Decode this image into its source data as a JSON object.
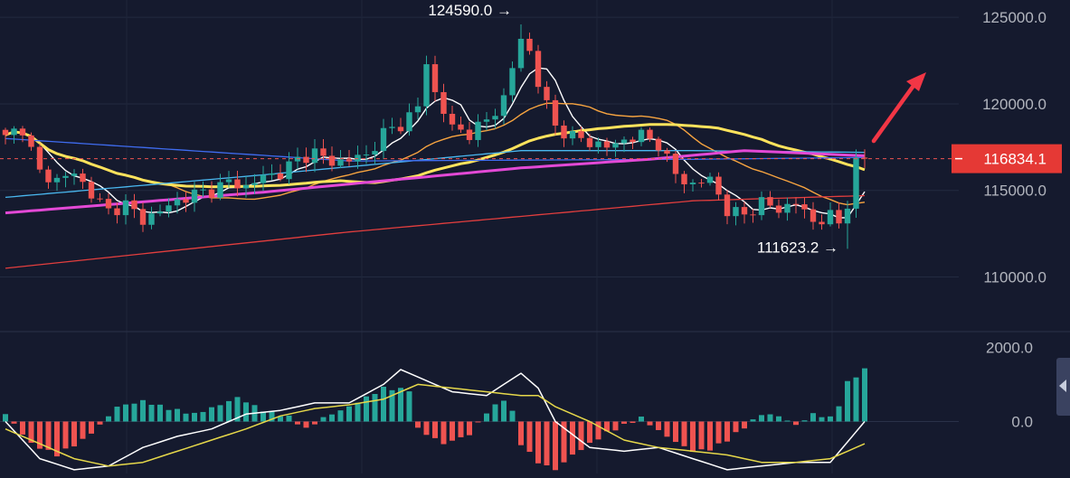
{
  "chart_data": [
    {
      "type": "candlestick",
      "title": "",
      "xlabel": "",
      "ylabel": "",
      "ylim": [
        107000,
        126000
      ],
      "y_ticks": [
        "110000.0",
        "115000.0",
        "120000.0",
        "125000.0"
      ],
      "grid": true,
      "current_price": "116834.1",
      "annotations": [
        {
          "label": "124590.0",
          "marker": "→",
          "price": 124590.0,
          "candle_index": 60
        },
        {
          "label": "111623.2",
          "marker": "→",
          "price": 111623.2,
          "candle_index": 98
        }
      ],
      "trend_arrow": {
        "direction": "up",
        "color": "#f23645"
      },
      "ohlc_keyframes": [
        [
          0,
          118200
        ],
        [
          2,
          118600
        ],
        [
          4,
          116000
        ],
        [
          6,
          115600
        ],
        [
          8,
          116000
        ],
        [
          10,
          114800
        ],
        [
          12,
          113800
        ],
        [
          14,
          114200
        ],
        [
          16,
          113300
        ],
        [
          18,
          113800
        ],
        [
          20,
          114400
        ],
        [
          22,
          114800
        ],
        [
          24,
          115000
        ],
        [
          26,
          115500
        ],
        [
          28,
          115200
        ],
        [
          30,
          115800
        ],
        [
          32,
          116000
        ],
        [
          34,
          116800
        ],
        [
          36,
          117200
        ],
        [
          38,
          116600
        ],
        [
          40,
          116800
        ],
        [
          42,
          117000
        ],
        [
          44,
          118300
        ],
        [
          46,
          118800
        ],
        [
          48,
          119800
        ],
        [
          49,
          122400
        ],
        [
          50,
          120600
        ],
        [
          52,
          118600
        ],
        [
          54,
          118300
        ],
        [
          56,
          119000
        ],
        [
          58,
          120300
        ],
        [
          60,
          123800
        ],
        [
          61,
          123000
        ],
        [
          62,
          121200
        ],
        [
          64,
          118700
        ],
        [
          66,
          118100
        ],
        [
          68,
          117800
        ],
        [
          70,
          117500
        ],
        [
          72,
          117900
        ],
        [
          74,
          118200
        ],
        [
          76,
          117700
        ],
        [
          78,
          115900
        ],
        [
          80,
          115300
        ],
        [
          82,
          115700
        ],
        [
          84,
          113800
        ],
        [
          86,
          113600
        ],
        [
          88,
          114300
        ],
        [
          90,
          113900
        ],
        [
          92,
          114300
        ],
        [
          94,
          113200
        ],
        [
          96,
          113500
        ],
        [
          97,
          113100
        ],
        [
          98,
          114300
        ],
        [
          99,
          116600
        ],
        [
          100,
          116834.1
        ]
      ],
      "series": [
        {
          "color": "#ffffff",
          "period": 5
        },
        {
          "color": "#f7a440",
          "period": 20
        },
        {
          "color": "#ffe35c",
          "period": 40
        },
        {
          "color": "#4ab8f0",
          "keyframes": [
            [
              0,
              114600
            ],
            [
              30,
              115900
            ],
            [
              60,
              117300
            ],
            [
              80,
              117300
            ],
            [
              100,
              117200
            ]
          ]
        },
        {
          "color": "#3f6cf0",
          "keyframes": [
            [
              0,
              118000
            ],
            [
              40,
              116700
            ],
            [
              80,
              116800
            ],
            [
              100,
              116900
            ]
          ]
        },
        {
          "color": "#e349d6",
          "keyframes": [
            [
              0,
              113700
            ],
            [
              30,
              114900
            ],
            [
              60,
              116300
            ],
            [
              75,
              116800
            ],
            [
              86,
              117300
            ],
            [
              100,
              117000
            ]
          ]
        },
        {
          "color": "#e23e3e",
          "keyframes": [
            [
              0,
              110500
            ],
            [
              40,
              112600
            ],
            [
              80,
              114400
            ],
            [
              100,
              114700
            ]
          ]
        }
      ]
    },
    {
      "type": "macd",
      "title": "",
      "xlabel": "",
      "ylabel": "",
      "ylim": [
        -1400,
        2300
      ],
      "y_ticks": [
        "0.0",
        "2000.0"
      ],
      "histogram_keyframes": [
        [
          0,
          200
        ],
        [
          3,
          -600
        ],
        [
          6,
          -900
        ],
        [
          9,
          -500
        ],
        [
          11,
          -100
        ],
        [
          13,
          400
        ],
        [
          16,
          550
        ],
        [
          19,
          350
        ],
        [
          22,
          200
        ],
        [
          25,
          450
        ],
        [
          27,
          650
        ],
        [
          30,
          300
        ],
        [
          33,
          120
        ],
        [
          35,
          -200
        ],
        [
          37,
          100
        ],
        [
          40,
          400
        ],
        [
          44,
          900
        ],
        [
          47,
          850
        ],
        [
          48,
          -200
        ],
        [
          51,
          -600
        ],
        [
          54,
          -350
        ],
        [
          56,
          250
        ],
        [
          58,
          600
        ],
        [
          59,
          250
        ],
        [
          60,
          -600
        ],
        [
          62,
          -1100
        ],
        [
          64,
          -1300
        ],
        [
          66,
          -900
        ],
        [
          68,
          -600
        ],
        [
          70,
          -300
        ],
        [
          72,
          -100
        ],
        [
          74,
          100
        ],
        [
          76,
          -250
        ],
        [
          78,
          -550
        ],
        [
          80,
          -800
        ],
        [
          82,
          -750
        ],
        [
          84,
          -500
        ],
        [
          86,
          -150
        ],
        [
          88,
          200
        ],
        [
          90,
          150
        ],
        [
          92,
          -100
        ],
        [
          94,
          200
        ],
        [
          96,
          100
        ],
        [
          97,
          450
        ],
        [
          98,
          1050
        ],
        [
          100,
          1400
        ]
      ],
      "series": [
        {
          "name": "",
          "color": "#ffffff",
          "keyframes": [
            [
              0,
              0
            ],
            [
              4,
              -1000
            ],
            [
              8,
              -1300
            ],
            [
              12,
              -1200
            ],
            [
              16,
              -700
            ],
            [
              20,
              -400
            ],
            [
              24,
              -200
            ],
            [
              28,
              200
            ],
            [
              32,
              300
            ],
            [
              36,
              500
            ],
            [
              40,
              500
            ],
            [
              44,
              1000
            ],
            [
              46,
              1400
            ],
            [
              48,
              1200
            ],
            [
              52,
              800
            ],
            [
              56,
              700
            ],
            [
              60,
              1300
            ],
            [
              62,
              900
            ],
            [
              64,
              0
            ],
            [
              68,
              -700
            ],
            [
              72,
              -800
            ],
            [
              76,
              -700
            ],
            [
              80,
              -1000
            ],
            [
              84,
              -1300
            ],
            [
              88,
              -1200
            ],
            [
              92,
              -1100
            ],
            [
              96,
              -1100
            ],
            [
              100,
              0
            ]
          ]
        },
        {
          "name": "",
          "color": "#e6d84a",
          "keyframes": [
            [
              0,
              -200
            ],
            [
              4,
              -600
            ],
            [
              8,
              -1000
            ],
            [
              12,
              -1200
            ],
            [
              16,
              -1100
            ],
            [
              20,
              -800
            ],
            [
              24,
              -500
            ],
            [
              28,
              -200
            ],
            [
              32,
              150
            ],
            [
              36,
              350
            ],
            [
              40,
              450
            ],
            [
              44,
              600
            ],
            [
              48,
              1000
            ],
            [
              52,
              900
            ],
            [
              56,
              800
            ],
            [
              60,
              700
            ],
            [
              62,
              700
            ],
            [
              64,
              400
            ],
            [
              68,
              0
            ],
            [
              72,
              -500
            ],
            [
              76,
              -700
            ],
            [
              80,
              -800
            ],
            [
              84,
              -900
            ],
            [
              88,
              -1100
            ],
            [
              92,
              -1100
            ],
            [
              96,
              -1000
            ],
            [
              100,
              -600
            ]
          ]
        }
      ]
    }
  ]
}
